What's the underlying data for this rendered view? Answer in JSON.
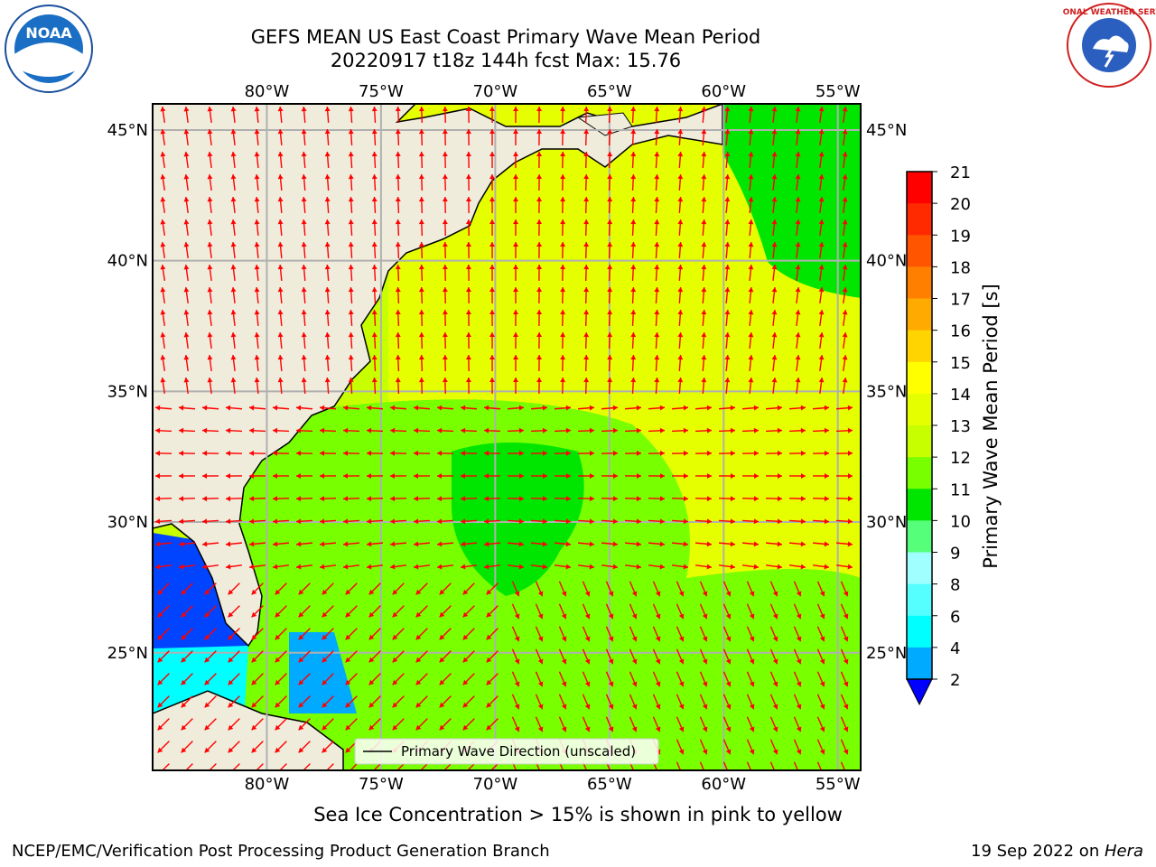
{
  "title": {
    "line1": "GEFS MEAN US East Coast Primary Wave Mean Period",
    "line2": "20220917 t18z 144h fcst   Max: 15.76"
  },
  "map": {
    "lon_labels": [
      "80°W",
      "75°W",
      "70°W",
      "65°W",
      "60°W",
      "55°W"
    ],
    "lat_labels": [
      "45°N",
      "40°N",
      "35°N",
      "30°N",
      "25°N"
    ],
    "lon_range": [
      -85,
      -54
    ],
    "lat_range": [
      20.5,
      46
    ],
    "legend_label": "Primary Wave Direction (unscaled)",
    "arrow_color": "#ff0000",
    "land_color": "#efecdc"
  },
  "colorbar": {
    "label": "Primary Wave Mean Period [s]",
    "ticks": [
      "21",
      "20",
      "19",
      "18",
      "17",
      "16",
      "15",
      "14",
      "13",
      "12",
      "11",
      "10",
      "9",
      "8",
      "6",
      "4",
      "2"
    ],
    "colors": [
      "#ff0000",
      "#ff2a00",
      "#ff5500",
      "#ff8000",
      "#ffaa00",
      "#ffd400",
      "#ffff00",
      "#e6ff00",
      "#c8ff00",
      "#78ff00",
      "#00e600",
      "#55ff7a",
      "#a0ffff",
      "#55ffff",
      "#00ffff",
      "#00aaff",
      "#0044ff"
    ]
  },
  "note": "Sea Ice Concentration > 15% is shown in pink to yellow",
  "footer": {
    "left": "NCEP/EMC/Verification Post Processing Product Generation Branch",
    "right_date": "19 Sep 2022 on ",
    "right_machine": "Hera"
  },
  "logos": {
    "noaa": "NOAA",
    "nws": "NATIONAL WEATHER SERVICE"
  }
}
